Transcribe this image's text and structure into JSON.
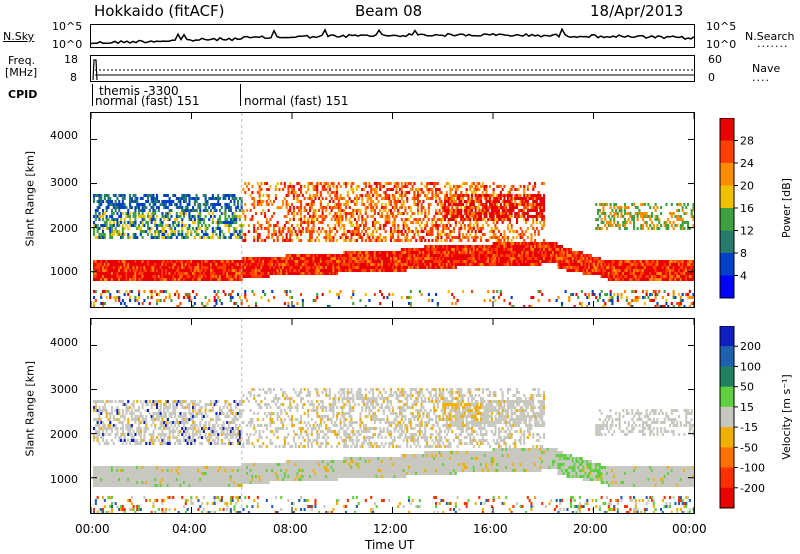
{
  "header": {
    "station": "Hokkaido (fitACF)",
    "beam": "Beam 08",
    "date": "18/Apr/2013"
  },
  "nsky_panel": {
    "left_label": "N.Sky",
    "left_ticks": [
      "10^5",
      "10^0"
    ],
    "right_label": "N.Search",
    "right_ticks": [
      "10^5",
      "10^0"
    ]
  },
  "freq_panel": {
    "left_label_line1": "Freq.",
    "left_label_line2": "[MHz]",
    "left_ticks": [
      "18",
      "8"
    ],
    "right_label": "Nave",
    "right_ticks": [
      "60",
      "0"
    ]
  },
  "cpid_panel": {
    "label": "CPID",
    "entries": [
      "themis -3300",
      "normal (fast) 151",
      "normal (fast) 151"
    ]
  },
  "chart_data": [
    {
      "type": "heatmap",
      "name": "power",
      "ylabel": "Slant Range [km]",
      "yticks": [
        1000,
        2000,
        3000,
        4000
      ],
      "ylim": [
        200,
        4600
      ],
      "colorbar_label": "Power [dB]",
      "colorbar_ticks": [
        "28",
        "24",
        "20",
        "16",
        "12",
        "8",
        "4"
      ],
      "colorbar_colors": [
        "#e80000",
        "#ff4000",
        "#ff8c00",
        "#f0c000",
        "#40a040",
        "#287a6a",
        "#0040c8",
        "#0000ff"
      ]
    },
    {
      "type": "heatmap",
      "name": "velocity",
      "ylabel": "Slant Range [km]",
      "yticks": [
        1000,
        2000,
        3000,
        4000
      ],
      "ylim": [
        200,
        4600
      ],
      "colorbar_label": "Velocity [m s⁻¹]",
      "colorbar_ticks": [
        "200",
        "100",
        "50",
        "15",
        "-15",
        "-50",
        "-100",
        "-200"
      ],
      "colorbar_colors": [
        "#1020c0",
        "#2060b0",
        "#208060",
        "#60d040",
        "#c8c8c0",
        "#f0b000",
        "#ff7000",
        "#ff3000",
        "#e80000"
      ],
      "xlabel": "Time UT",
      "xticks": [
        "00:00",
        "04:00",
        "08:00",
        "12:00",
        "16:00",
        "20:00",
        "00:00"
      ]
    }
  ]
}
